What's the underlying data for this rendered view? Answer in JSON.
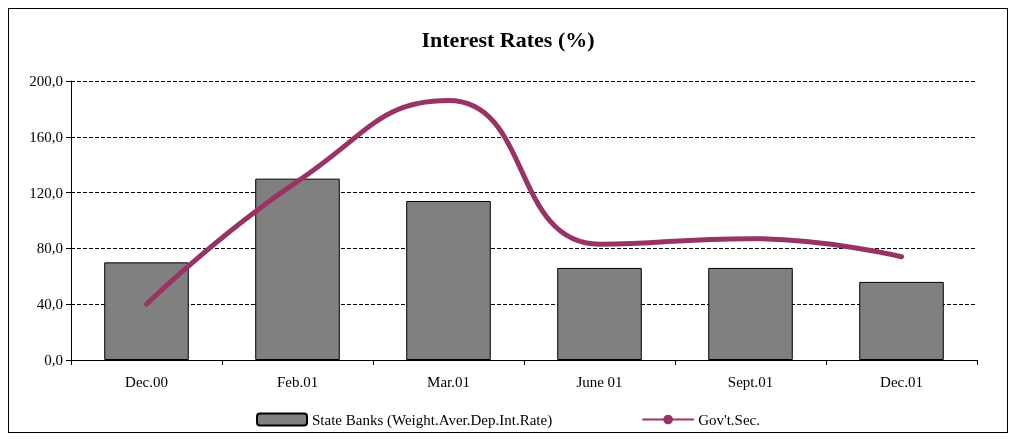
{
  "chart_data": {
    "type": "bar",
    "title": "Interest Rates (%)",
    "categories": [
      "Dec.00",
      "Feb.01",
      "Mar.01",
      "June 01",
      "Sept.01",
      "Dec.01"
    ],
    "series": [
      {
        "name": "State Banks (Weight.Aver.Dep.Int.Rate)",
        "color": "#808080",
        "values": [
          70,
          130,
          114,
          66,
          66,
          56
        ]
      },
      {
        "name": "Gov't.Sec.",
        "type": "line",
        "color": "#993366",
        "values": [
          40,
          128,
          186,
          83,
          87,
          74
        ]
      }
    ],
    "ylim": [
      0,
      200
    ],
    "yticks": [
      {
        "value": 0,
        "label": "0,0"
      },
      {
        "value": 40,
        "label": "40,0"
      },
      {
        "value": 80,
        "label": "80,0"
      },
      {
        "value": 120,
        "label": "120,0"
      },
      {
        "value": 160,
        "label": "160,0"
      },
      {
        "value": 200,
        "label": "200,0"
      }
    ],
    "grid": "y",
    "legend": "bottom",
    "marker": "none",
    "line_style": "solid"
  }
}
